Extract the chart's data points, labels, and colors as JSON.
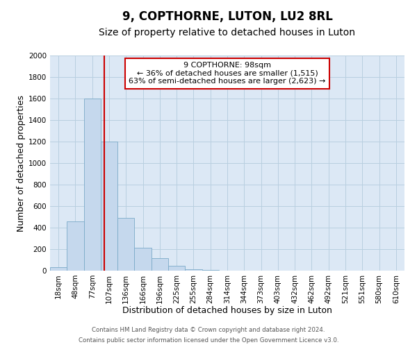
{
  "title": "9, COPTHORNE, LUTON, LU2 8RL",
  "subtitle": "Size of property relative to detached houses in Luton",
  "xlabel": "Distribution of detached houses by size in Luton",
  "ylabel": "Number of detached properties",
  "bar_labels": [
    "18sqm",
    "48sqm",
    "77sqm",
    "107sqm",
    "136sqm",
    "166sqm",
    "196sqm",
    "225sqm",
    "255sqm",
    "284sqm",
    "314sqm",
    "344sqm",
    "373sqm",
    "403sqm",
    "432sqm",
    "462sqm",
    "492sqm",
    "521sqm",
    "551sqm",
    "580sqm",
    "610sqm"
  ],
  "bar_values": [
    35,
    460,
    1600,
    1200,
    490,
    210,
    115,
    45,
    15,
    5,
    0,
    0,
    0,
    0,
    0,
    0,
    0,
    0,
    0,
    0,
    0
  ],
  "bar_color": "#c5d8ed",
  "bar_edge_color": "#7aaac8",
  "ylim": [
    0,
    2000
  ],
  "yticks": [
    0,
    200,
    400,
    600,
    800,
    1000,
    1200,
    1400,
    1600,
    1800,
    2000
  ],
  "vline_x_index": 2.72,
  "vline_color": "#cc0000",
  "annotation_line1": "9 COPTHORNE: 98sqm",
  "annotation_line2": "← 36% of detached houses are smaller (1,515)",
  "annotation_line3": "63% of semi-detached houses are larger (2,623) →",
  "annotation_box_color": "#ffffff",
  "annotation_box_edge_color": "#cc0000",
  "footer_line1": "Contains HM Land Registry data © Crown copyright and database right 2024.",
  "footer_line2": "Contains public sector information licensed under the Open Government Licence v3.0.",
  "background_color": "#ffffff",
  "plot_bg_color": "#dce8f5",
  "grid_color": "#b8cfe0",
  "title_fontsize": 12,
  "subtitle_fontsize": 10,
  "axis_label_fontsize": 9,
  "tick_fontsize": 7.5,
  "annotation_fontsize": 8
}
